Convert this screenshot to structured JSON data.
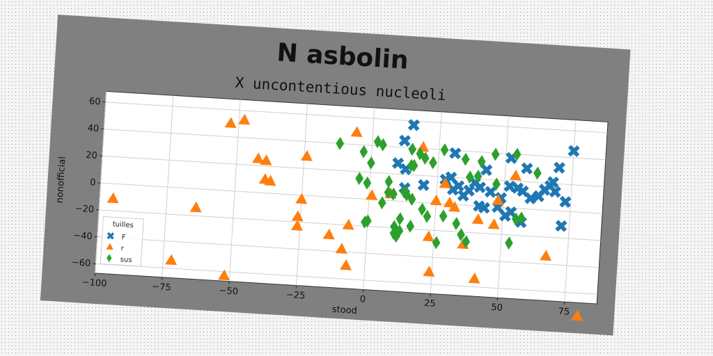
{
  "chart_data": {
    "type": "scatter",
    "title": "N asbolin",
    "subtitle": "X uncontentious nucleoli",
    "xlabel": "stood",
    "ylabel": "nonofficial",
    "xlim": [
      -100,
      87
    ],
    "ylim": [
      -67,
      68
    ],
    "xticks": [
      -100,
      -75,
      -50,
      -25,
      0,
      25,
      50,
      75
    ],
    "yticks": [
      -60,
      -40,
      -20,
      0,
      20,
      40,
      60
    ],
    "grid": true,
    "legend": {
      "title": "tuilles",
      "placement": "lower-left"
    },
    "colors": {
      "frame": "#808080",
      "plot_bg": "#ffffff"
    },
    "series": [
      {
        "name": "F",
        "marker": "x",
        "color": "#1f77b4",
        "points": [
          [
            15,
            57
          ],
          [
            12,
            45
          ],
          [
            31,
            38
          ],
          [
            52,
            37
          ],
          [
            58,
            30
          ],
          [
            70,
            32
          ],
          [
            75,
            45
          ],
          [
            10,
            28
          ],
          [
            13,
            24
          ],
          [
            13,
            10
          ],
          [
            20,
            13
          ],
          [
            28,
            18
          ],
          [
            30,
            20
          ],
          [
            31,
            11
          ],
          [
            33,
            14
          ],
          [
            35,
            7
          ],
          [
            37,
            11
          ],
          [
            39,
            17
          ],
          [
            41,
            14
          ],
          [
            43,
            27
          ],
          [
            45,
            11
          ],
          [
            49,
            7
          ],
          [
            52,
            16
          ],
          [
            55,
            15
          ],
          [
            57,
            13
          ],
          [
            60,
            8
          ],
          [
            63,
            10
          ],
          [
            65,
            15
          ],
          [
            67,
            18
          ],
          [
            68,
            21
          ],
          [
            69,
            14
          ],
          [
            73,
            7
          ],
          [
            41,
            0
          ],
          [
            43,
            -1
          ],
          [
            48,
            0
          ],
          [
            51,
            -6
          ],
          [
            53,
            -3
          ],
          [
            57,
            -10
          ],
          [
            72,
            -11
          ]
        ]
      },
      {
        "name": "r",
        "marker": "triangle",
        "color": "#ff7f0e",
        "points": [
          [
            -48,
            53
          ],
          [
            -53,
            50
          ],
          [
            -6,
            49
          ],
          [
            -42,
            25
          ],
          [
            -39,
            24
          ],
          [
            -24,
            29
          ],
          [
            -39,
            10
          ],
          [
            -37,
            9
          ],
          [
            19,
            41
          ],
          [
            28,
            15
          ],
          [
            8,
            5
          ],
          [
            1,
            3
          ],
          [
            25,
            2
          ],
          [
            30,
            1
          ],
          [
            32,
            -2
          ],
          [
            48,
            5
          ],
          [
            54,
            24
          ],
          [
            -25,
            -3
          ],
          [
            -26,
            -16
          ],
          [
            -26,
            -23
          ],
          [
            -7,
            -20
          ],
          [
            -14,
            -28
          ],
          [
            -9,
            -38
          ],
          [
            -7,
            -50
          ],
          [
            23,
            -25
          ],
          [
            24,
            -51
          ],
          [
            36,
            -29
          ],
          [
            41,
            -10
          ],
          [
            47,
            -13
          ],
          [
            67,
            -34
          ],
          [
            80,
            -77
          ],
          [
            41,
            -54
          ],
          [
            -95,
            -11
          ],
          [
            -64,
            -14
          ],
          [
            -72,
            -54
          ],
          [
            -52,
            -63
          ]
        ]
      },
      {
        "name": "sus",
        "marker": "diamond",
        "color": "#2ca02c",
        "points": [
          [
            -12,
            40
          ],
          [
            2,
            43
          ],
          [
            4,
            41
          ],
          [
            -3,
            35
          ],
          [
            0,
            27
          ],
          [
            -4,
            15
          ],
          [
            -1,
            12
          ],
          [
            15,
            39
          ],
          [
            15,
            27
          ],
          [
            16,
            27
          ],
          [
            18,
            36
          ],
          [
            20,
            33
          ],
          [
            23,
            30
          ],
          [
            27,
            40
          ],
          [
            35,
            34
          ],
          [
            41,
            33
          ],
          [
            46,
            39
          ],
          [
            54,
            40
          ],
          [
            62,
            27
          ],
          [
            37,
            21
          ],
          [
            40,
            22
          ],
          [
            47,
            17
          ],
          [
            7,
            14
          ],
          [
            7,
            6
          ],
          [
            9,
            5
          ],
          [
            13,
            7
          ],
          [
            14,
            5
          ],
          [
            16,
            2
          ],
          [
            5,
            -2
          ],
          [
            20,
            -5
          ],
          [
            22,
            -10
          ],
          [
            28,
            -9
          ],
          [
            33,
            -14
          ],
          [
            35,
            -22
          ],
          [
            12,
            -13
          ],
          [
            10,
            -19
          ],
          [
            12,
            -22
          ],
          [
            -1,
            -17
          ],
          [
            0,
            -16
          ],
          [
            10,
            -24
          ],
          [
            11,
            -26
          ],
          [
            16,
            -18
          ],
          [
            26,
            -29
          ],
          [
            37,
            -27
          ],
          [
            53,
            -26
          ],
          [
            57,
            -7
          ],
          [
            55,
            -8
          ]
        ]
      }
    ]
  }
}
